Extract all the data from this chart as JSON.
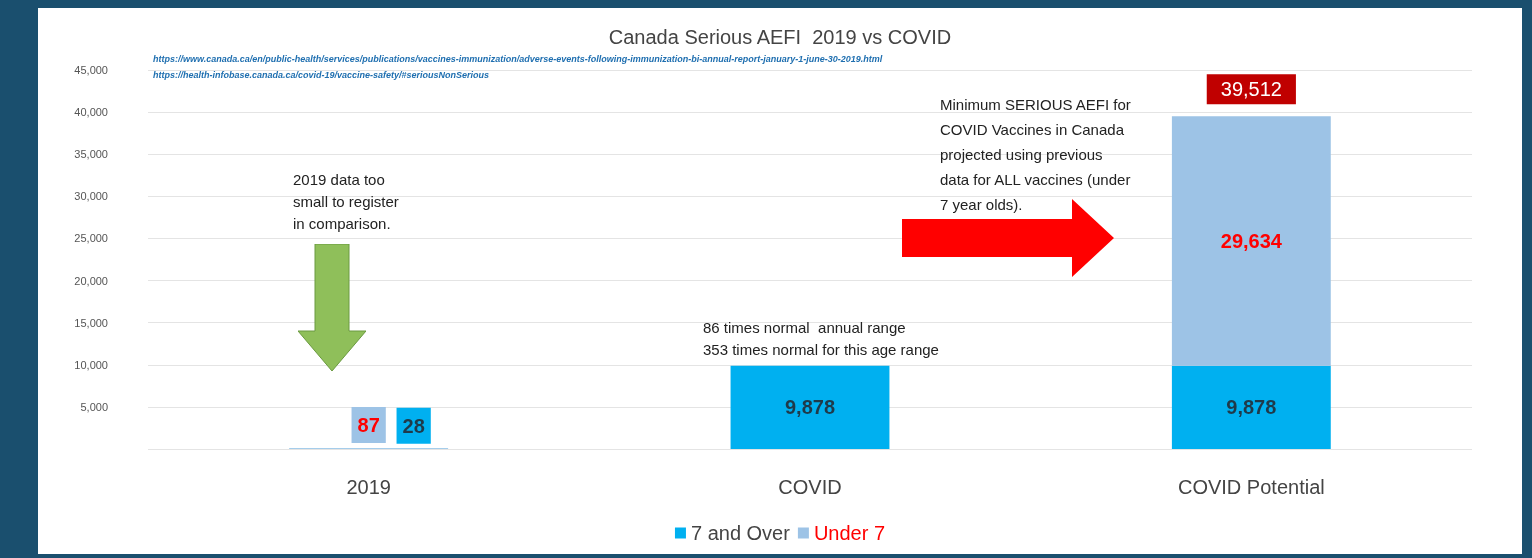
{
  "chart_data": {
    "type": "bar",
    "title": "Canada Serious AEFI  2019 vs COVID",
    "categories": [
      "2019",
      "COVID",
      "COVID Potential"
    ],
    "stacked": true,
    "series": [
      {
        "name": "7 and Over",
        "color": "#00b0f0",
        "values": [
          28,
          9878,
          9878
        ],
        "value_labels": [
          "28",
          "9,878",
          "9,878"
        ]
      },
      {
        "name": "Under 7",
        "color": "#9dc3e6",
        "values": [
          87,
          null,
          29634
        ],
        "value_labels": [
          "87",
          null,
          "29,634"
        ]
      }
    ],
    "totals": [
      null,
      null,
      "39,512"
    ],
    "ylim": [
      0,
      45000
    ],
    "yticks": [
      {
        "value": 0,
        "label": null
      },
      {
        "value": 5000,
        "label": "5,000"
      },
      {
        "value": 10000,
        "label": "10,000"
      },
      {
        "value": 15000,
        "label": "15,000"
      },
      {
        "value": 20000,
        "label": "20,000"
      },
      {
        "value": 25000,
        "label": "25,000"
      },
      {
        "value": 30000,
        "label": "30,000"
      },
      {
        "value": 35000,
        "label": "35,000"
      },
      {
        "value": 40000,
        "label": "40,000"
      },
      {
        "value": 45000,
        "label": "45,000"
      }
    ],
    "grid": "y",
    "legend": "bottom",
    "annotations": [
      "https://www.canada.ca/en/public-health/services/publications/vaccines-immunization/adverse-events-following-immunization-bi-annual-report-january-1-june-30-2019.html",
      "https://health-infobase.canada.ca/covid-19/vaccine-safety/#seriousNonSerious",
      "2019 data too\nsmall to register\nin comparison.",
      "86 times normal  annual range\n353 times normal for this age range",
      "Minimum SERIOUS AEFI for\nCOVID Vaccines in Canada\nprojected using previous\ndata for ALL vaccines (under\n7 year olds)."
    ]
  }
}
